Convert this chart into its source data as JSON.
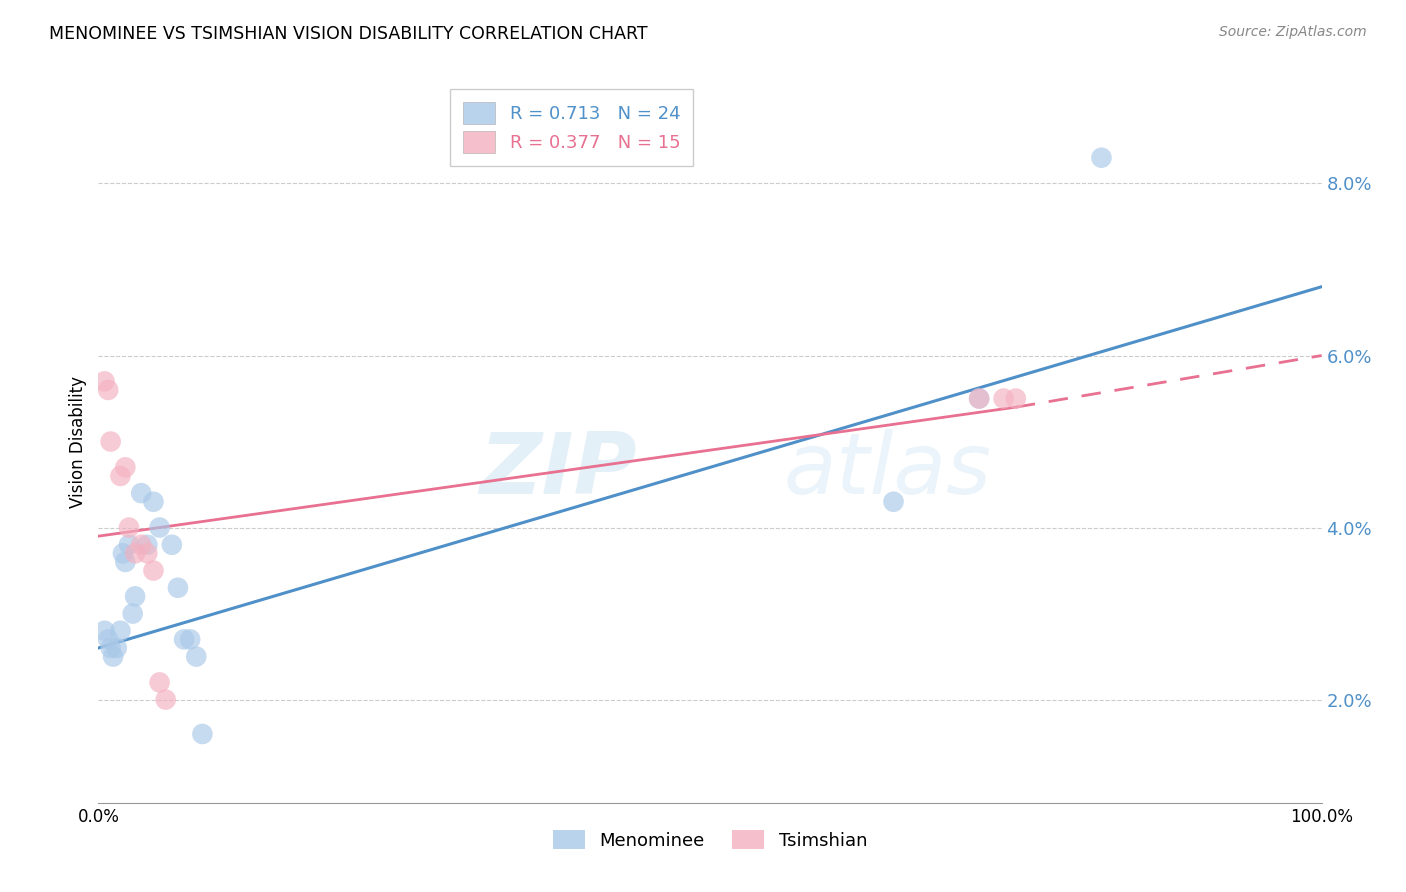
{
  "title": "MENOMINEE VS TSIMSHIAN VISION DISABILITY CORRELATION CHART",
  "source": "Source: ZipAtlas.com",
  "ylabel": "Vision Disability",
  "xlim": [
    0,
    1
  ],
  "ylim": [
    0.008,
    0.092
  ],
  "yticks": [
    0.02,
    0.04,
    0.06,
    0.08
  ],
  "ytick_labels": [
    "2.0%",
    "4.0%",
    "6.0%",
    "8.0%"
  ],
  "menominee_R": 0.713,
  "menominee_N": 24,
  "tsimshian_R": 0.377,
  "tsimshian_N": 15,
  "menominee_color": "#a8c8e8",
  "tsimshian_color": "#f4b0c0",
  "line_blue": "#5090c8",
  "line_pink": "#e87090",
  "watermark_zip": "ZIP",
  "watermark_atlas": "atlas",
  "menominee_x": [
    0.005,
    0.008,
    0.01,
    0.012,
    0.015,
    0.018,
    0.02,
    0.022,
    0.025,
    0.028,
    0.03,
    0.035,
    0.04,
    0.045,
    0.05,
    0.06,
    0.065,
    0.07,
    0.075,
    0.08,
    0.085,
    0.65,
    0.72,
    0.82
  ],
  "menominee_y": [
    0.028,
    0.027,
    0.026,
    0.025,
    0.026,
    0.028,
    0.037,
    0.036,
    0.038,
    0.03,
    0.032,
    0.044,
    0.038,
    0.043,
    0.04,
    0.038,
    0.033,
    0.027,
    0.027,
    0.025,
    0.016,
    0.043,
    0.055,
    0.083
  ],
  "tsimshian_x": [
    0.005,
    0.008,
    0.01,
    0.018,
    0.022,
    0.025,
    0.03,
    0.035,
    0.04,
    0.045,
    0.05,
    0.055,
    0.72,
    0.74,
    0.75
  ],
  "tsimshian_y": [
    0.057,
    0.056,
    0.05,
    0.046,
    0.047,
    0.04,
    0.037,
    0.038,
    0.037,
    0.035,
    0.022,
    0.02,
    0.055,
    0.055,
    0.055
  ],
  "blue_line_x0": 0.0,
  "blue_line_x1": 1.0,
  "blue_line_y0": 0.026,
  "blue_line_y1": 0.068,
  "pink_line_x0": 0.0,
  "pink_line_x1_solid": 0.75,
  "pink_line_x1_dashed": 1.0,
  "pink_line_y0": 0.039,
  "pink_line_y1_solid": 0.054,
  "pink_line_y1_dashed": 0.06
}
